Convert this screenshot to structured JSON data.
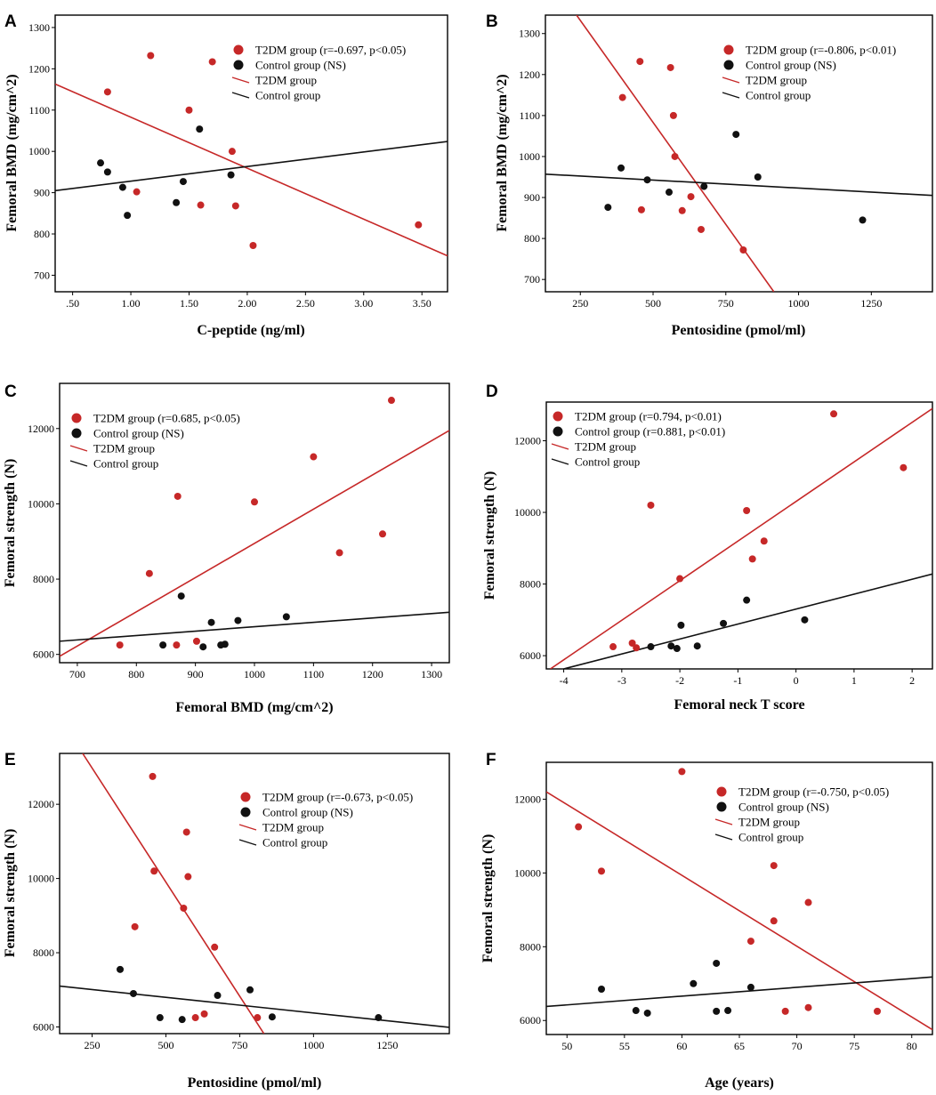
{
  "colors": {
    "t2dm": "#c62828",
    "control": "#111111",
    "axis": "#000000"
  },
  "chart_data": [
    {
      "type": "scatter",
      "panel_label": "A",
      "xlabel": "C-peptide (ng/ml)",
      "ylabel": "Femoral BMD (mg/cm^2)",
      "xlim": [
        0.35,
        3.72
      ],
      "ylim": [
        660,
        1330
      ],
      "xticks": [
        0.5,
        1.0,
        1.5,
        2.0,
        2.5,
        3.0,
        3.5
      ],
      "xtick_labels": [
        ".50",
        "1.00",
        "1.50",
        "2.00",
        "2.50",
        "3.00",
        "3.50"
      ],
      "yticks": [
        700,
        800,
        900,
        1000,
        1100,
        1200,
        1300
      ],
      "ytick_labels": [
        "700",
        "800",
        "900",
        "1000",
        "1100",
        "1200",
        "1300"
      ],
      "legend": {
        "position": "top-right",
        "items": [
          {
            "marker": "dot",
            "series": "t2dm",
            "label": "T2DM group (r=-0.697, p<0.05)"
          },
          {
            "marker": "dot",
            "series": "control",
            "label": "Control group (NS)"
          },
          {
            "marker": "line",
            "series": "t2dm",
            "label": "T2DM group"
          },
          {
            "marker": "line",
            "series": "control",
            "label": "Control group"
          }
        ]
      },
      "series": [
        {
          "name": "T2DM group",
          "key": "t2dm",
          "points": [
            [
              0.8,
              1144
            ],
            [
              1.05,
              902
            ],
            [
              1.17,
              1232
            ],
            [
              1.5,
              1100
            ],
            [
              1.6,
              870
            ],
            [
              1.7,
              1217
            ],
            [
              1.87,
              1000
            ],
            [
              1.9,
              868
            ],
            [
              2.05,
              772
            ],
            [
              3.47,
              822
            ]
          ],
          "fit": [
            [
              0.35,
              1163
            ],
            [
              3.72,
              747
            ]
          ]
        },
        {
          "name": "Control group",
          "key": "control",
          "points": [
            [
              0.74,
              972
            ],
            [
              0.8,
              950
            ],
            [
              0.93,
              913
            ],
            [
              0.97,
              845
            ],
            [
              1.39,
              876
            ],
            [
              1.45,
              927
            ],
            [
              1.59,
              1054
            ],
            [
              1.86,
              943
            ]
          ],
          "fit": [
            [
              0.35,
              905
            ],
            [
              3.72,
              1024
            ]
          ]
        }
      ]
    },
    {
      "type": "scatter",
      "panel_label": "B",
      "xlabel": "Pentosidine (pmol/ml)",
      "ylabel": "Femoral BMD (mg/cm^2)",
      "xlim": [
        130,
        1460
      ],
      "ylim": [
        670,
        1345
      ],
      "xticks": [
        250,
        500,
        750,
        1000,
        1250
      ],
      "xtick_labels": [
        "250",
        "500",
        "750",
        "1000",
        "1250"
      ],
      "yticks": [
        700,
        800,
        900,
        1000,
        1100,
        1200,
        1300
      ],
      "ytick_labels": [
        "700",
        "800",
        "900",
        "1000",
        "1100",
        "1200",
        "1300"
      ],
      "legend": {
        "position": "top-right",
        "items": [
          {
            "marker": "dot",
            "series": "t2dm",
            "label": "T2DM group (r=-0.806, p<0.01)"
          },
          {
            "marker": "dot",
            "series": "control",
            "label": "Control group (NS)"
          },
          {
            "marker": "line",
            "series": "t2dm",
            "label": "T2DM group"
          },
          {
            "marker": "line",
            "series": "control",
            "label": "Control group"
          }
        ]
      },
      "series": [
        {
          "name": "T2DM group",
          "key": "t2dm",
          "points": [
            [
              395,
              1144
            ],
            [
              455,
              1232
            ],
            [
              460,
              870
            ],
            [
              560,
              1217
            ],
            [
              570,
              1100
            ],
            [
              575,
              1000
            ],
            [
              600,
              868
            ],
            [
              630,
              902
            ],
            [
              665,
              822
            ],
            [
              810,
              772
            ]
          ],
          "fit": [
            [
              237,
              1345
            ],
            [
              915,
              670
            ]
          ]
        },
        {
          "name": "Control group",
          "key": "control",
          "points": [
            [
              345,
              876
            ],
            [
              390,
              972
            ],
            [
              480,
              943
            ],
            [
              555,
              913
            ],
            [
              675,
              927
            ],
            [
              785,
              1054
            ],
            [
              860,
              950
            ],
            [
              1220,
              845
            ]
          ],
          "fit": [
            [
              130,
              957
            ],
            [
              1460,
              905
            ]
          ]
        }
      ]
    },
    {
      "type": "scatter",
      "panel_label": "C",
      "xlabel": "Femoral BMD (mg/cm^2)",
      "ylabel": "Femoral strength (N)",
      "xlim": [
        670,
        1330
      ],
      "ylim": [
        5780,
        13200
      ],
      "xticks": [
        700,
        800,
        900,
        1000,
        1100,
        1200,
        1300
      ],
      "xtick_labels": [
        "700",
        "800",
        "900",
        "1000",
        "1100",
        "1200",
        "1300"
      ],
      "yticks": [
        6000,
        8000,
        10000,
        12000
      ],
      "ytick_labels": [
        "6000",
        "8000",
        "10000",
        "12000"
      ],
      "legend": {
        "position": "top-left",
        "items": [
          {
            "marker": "dot",
            "series": "t2dm",
            "label": "T2DM group (r=0.685, p<0.05)"
          },
          {
            "marker": "dot",
            "series": "control",
            "label": "Control group (NS)"
          },
          {
            "marker": "line",
            "series": "t2dm",
            "label": "T2DM group"
          },
          {
            "marker": "line",
            "series": "control",
            "label": "Control group"
          }
        ]
      },
      "series": [
        {
          "name": "T2DM group",
          "key": "t2dm",
          "points": [
            [
              772,
              6250
            ],
            [
              822,
              8150
            ],
            [
              868,
              6250
            ],
            [
              870,
              10200
            ],
            [
              902,
              6350
            ],
            [
              1000,
              10050
            ],
            [
              1100,
              11250
            ],
            [
              1144,
              8700
            ],
            [
              1217,
              9200
            ],
            [
              1232,
              12750
            ]
          ],
          "fit": [
            [
              670,
              5950
            ],
            [
              1330,
              11950
            ]
          ]
        },
        {
          "name": "Control group",
          "key": "control",
          "points": [
            [
              845,
              6250
            ],
            [
              876,
              7550
            ],
            [
              913,
              6200
            ],
            [
              927,
              6850
            ],
            [
              943,
              6250
            ],
            [
              950,
              6270
            ],
            [
              972,
              6900
            ],
            [
              1054,
              7000
            ]
          ],
          "fit": [
            [
              670,
              6350
            ],
            [
              1330,
              7120
            ]
          ]
        }
      ]
    },
    {
      "type": "scatter",
      "panel_label": "D",
      "xlabel": "Femoral neck T score",
      "ylabel": "Femoral strength (N)",
      "xlim": [
        -4.3,
        2.35
      ],
      "ylim": [
        5630,
        13080
      ],
      "xticks": [
        -4,
        -3,
        -2,
        -1,
        0,
        1,
        2
      ],
      "xtick_labels": [
        "-4",
        "-3",
        "-2",
        "-1",
        "0",
        "1",
        "2"
      ],
      "yticks": [
        6000,
        8000,
        10000,
        12000
      ],
      "ytick_labels": [
        "6000",
        "8000",
        "10000",
        "12000"
      ],
      "legend": {
        "position": "top-left",
        "items": [
          {
            "marker": "dot",
            "series": "t2dm",
            "label": "T2DM group (r=0.794, p<0.01)"
          },
          {
            "marker": "dot",
            "series": "control",
            "label": "Control group (r=0.881, p<0.01)"
          },
          {
            "marker": "line",
            "series": "t2dm",
            "label": "T2DM group"
          },
          {
            "marker": "line",
            "series": "control",
            "label": "Control group"
          }
        ]
      },
      "series": [
        {
          "name": "T2DM group",
          "key": "t2dm",
          "points": [
            [
              -3.15,
              6250
            ],
            [
              -2.82,
              6350
            ],
            [
              -2.75,
              6220
            ],
            [
              -2.5,
              10200
            ],
            [
              -2.0,
              8150
            ],
            [
              -0.85,
              10050
            ],
            [
              -0.75,
              8700
            ],
            [
              -0.55,
              9200
            ],
            [
              0.65,
              12750
            ],
            [
              1.85,
              11250
            ]
          ],
          "fit": [
            [
              -4.23,
              5630
            ],
            [
              2.35,
              12900
            ]
          ]
        },
        {
          "name": "Control group",
          "key": "control",
          "points": [
            [
              -2.5,
              6250
            ],
            [
              -2.15,
              6270
            ],
            [
              -2.05,
              6200
            ],
            [
              -1.98,
              6850
            ],
            [
              -1.7,
              6270
            ],
            [
              -1.25,
              6900
            ],
            [
              -0.85,
              7550
            ],
            [
              0.15,
              7000
            ]
          ],
          "fit": [
            [
              -4.0,
              5630
            ],
            [
              2.35,
              8280
            ]
          ]
        }
      ]
    },
    {
      "type": "scatter",
      "panel_label": "E",
      "xlabel": "Pentosidine (pmol/ml)",
      "ylabel": "Femoral strength (N)",
      "xlim": [
        140,
        1460
      ],
      "ylim": [
        5820,
        13370
      ],
      "xticks": [
        250,
        500,
        750,
        1000,
        1250
      ],
      "xtick_labels": [
        "250",
        "500",
        "750",
        "1000",
        "1250"
      ],
      "yticks": [
        6000,
        8000,
        10000,
        12000
      ],
      "ytick_labels": [
        "6000",
        "8000",
        "10000",
        "12000"
      ],
      "legend": {
        "position": "top-right",
        "items": [
          {
            "marker": "dot",
            "series": "t2dm",
            "label": "T2DM group (r=-0.673, p<0.05)"
          },
          {
            "marker": "dot",
            "series": "control",
            "label": "Control group (NS)"
          },
          {
            "marker": "line",
            "series": "t2dm",
            "label": "T2DM group"
          },
          {
            "marker": "line",
            "series": "control",
            "label": "Control group"
          }
        ]
      },
      "series": [
        {
          "name": "T2DM group",
          "key": "t2dm",
          "points": [
            [
              395,
              8700
            ],
            [
              455,
              12750
            ],
            [
              460,
              10200
            ],
            [
              560,
              9200
            ],
            [
              570,
              11250
            ],
            [
              575,
              10050
            ],
            [
              600,
              6250
            ],
            [
              630,
              6350
            ],
            [
              665,
              8150
            ],
            [
              810,
              6250
            ]
          ],
          "fit": [
            [
              218,
              13370
            ],
            [
              832,
              5820
            ]
          ]
        },
        {
          "name": "Control group",
          "key": "control",
          "points": [
            [
              345,
              7550
            ],
            [
              390,
              6900
            ],
            [
              480,
              6250
            ],
            [
              555,
              6200
            ],
            [
              675,
              6850
            ],
            [
              785,
              7000
            ],
            [
              860,
              6270
            ],
            [
              1220,
              6250
            ]
          ],
          "fit": [
            [
              140,
              7100
            ],
            [
              1460,
              5990
            ]
          ]
        }
      ]
    },
    {
      "type": "scatter",
      "panel_label": "F",
      "xlabel": "Age (years)",
      "ylabel": "Femoral strength (N)",
      "xlim": [
        48.2,
        81.8
      ],
      "ylim": [
        5620,
        13000
      ],
      "xticks": [
        50,
        55,
        60,
        65,
        70,
        75,
        80
      ],
      "xtick_labels": [
        "50",
        "55",
        "60",
        "65",
        "70",
        "75",
        "80"
      ],
      "yticks": [
        6000,
        8000,
        10000,
        12000
      ],
      "ytick_labels": [
        "6000",
        "8000",
        "10000",
        "12000"
      ],
      "legend": {
        "position": "top-right",
        "items": [
          {
            "marker": "dot",
            "series": "t2dm",
            "label": "T2DM group (r=-0.750, p<0.05)"
          },
          {
            "marker": "dot",
            "series": "control",
            "label": "Control group (NS)"
          },
          {
            "marker": "line",
            "series": "t2dm",
            "label": "T2DM group"
          },
          {
            "marker": "line",
            "series": "control",
            "label": "Control group"
          }
        ]
      },
      "series": [
        {
          "name": "T2DM group",
          "key": "t2dm",
          "points": [
            [
              51,
              11250
            ],
            [
              53,
              10050
            ],
            [
              60,
              12750
            ],
            [
              66,
              8150
            ],
            [
              68,
              10200
            ],
            [
              68,
              8700
            ],
            [
              69,
              6250
            ],
            [
              71,
              9200
            ],
            [
              71,
              6350
            ],
            [
              77,
              6250
            ]
          ],
          "fit": [
            [
              48.2,
              12200
            ],
            [
              81.8,
              5750
            ]
          ]
        },
        {
          "name": "Control group",
          "key": "control",
          "points": [
            [
              53,
              6850
            ],
            [
              56,
              6270
            ],
            [
              57,
              6200
            ],
            [
              61,
              7000
            ],
            [
              63,
              7550
            ],
            [
              63,
              6250
            ],
            [
              64,
              6270
            ],
            [
              66,
              6900
            ]
          ],
          "fit": [
            [
              48.2,
              6380
            ],
            [
              81.8,
              7180
            ]
          ]
        }
      ]
    }
  ]
}
